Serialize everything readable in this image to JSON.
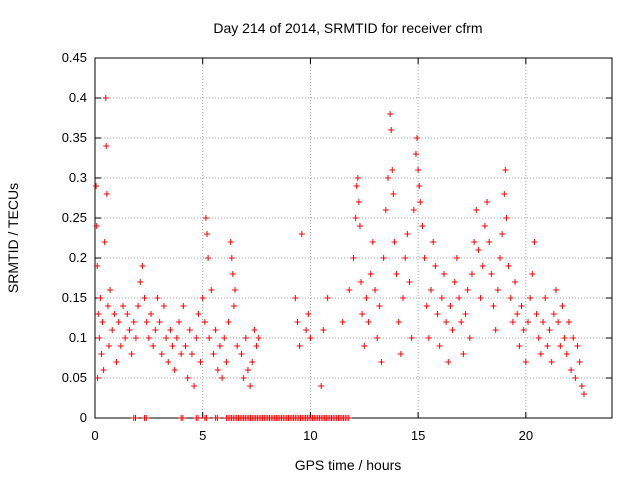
{
  "chart_data": {
    "type": "scatter",
    "title": "Day 214 of 2014, SRMTID for receiver cfrm",
    "xlabel": "GPS time / hours",
    "ylabel": "SRMTID / TECUs",
    "xlim": [
      0,
      24
    ],
    "ylim": [
      0,
      0.45
    ],
    "xticks": [
      0,
      5,
      10,
      15,
      20
    ],
    "xtick_labels": [
      "0",
      "5",
      "10",
      "15",
      "20"
    ],
    "yticks": [
      0,
      0.05,
      0.1,
      0.15,
      0.2,
      0.25,
      0.3,
      0.35,
      0.4,
      0.45
    ],
    "ytick_labels": [
      "0",
      "0.05",
      "0.1",
      "0.15",
      "0.2",
      "0.25",
      "0.3",
      "0.35",
      "0.4",
      "0.45"
    ],
    "grid": true,
    "marker": "plus",
    "color": "#ff0000",
    "series": [
      {
        "name": "SRMTID",
        "points": [
          [
            0.05,
            0.29
          ],
          [
            0.08,
            0.24
          ],
          [
            0.1,
            0.19
          ],
          [
            0.12,
            0.05
          ],
          [
            0.15,
            0.13
          ],
          [
            0.2,
            0.1
          ],
          [
            0.25,
            0.15
          ],
          [
            0.3,
            0.08
          ],
          [
            0.35,
            0.12
          ],
          [
            0.4,
            0.06
          ],
          [
            0.45,
            0.22
          ],
          [
            0.5,
            0.4
          ],
          [
            0.52,
            0.34
          ],
          [
            0.55,
            0.28
          ],
          [
            0.6,
            0.14
          ],
          [
            0.65,
            0.09
          ],
          [
            0.7,
            0.16
          ],
          [
            0.8,
            0.11
          ],
          [
            0.9,
            0.13
          ],
          [
            1.0,
            0.07
          ],
          [
            1.1,
            0.12
          ],
          [
            1.2,
            0.09
          ],
          [
            1.3,
            0.14
          ],
          [
            1.4,
            0.1
          ],
          [
            1.5,
            0.13
          ],
          [
            1.6,
            0.11
          ],
          [
            1.7,
            0.08
          ],
          [
            1.8,
            0.12
          ],
          [
            1.9,
            0.1
          ],
          [
            2.0,
            0.14
          ],
          [
            2.1,
            0.17
          ],
          [
            2.2,
            0.19
          ],
          [
            2.3,
            0.15
          ],
          [
            2.4,
            0.12
          ],
          [
            2.5,
            0.1
          ],
          [
            2.6,
            0.13
          ],
          [
            2.7,
            0.09
          ],
          [
            2.8,
            0.11
          ],
          [
            2.9,
            0.15
          ],
          [
            3.0,
            0.12
          ],
          [
            3.1,
            0.08
          ],
          [
            3.2,
            0.14
          ],
          [
            3.3,
            0.1
          ],
          [
            3.4,
            0.07
          ],
          [
            3.5,
            0.11
          ],
          [
            3.6,
            0.09
          ],
          [
            3.7,
            0.06
          ],
          [
            3.8,
            0.1
          ],
          [
            3.9,
            0.12
          ],
          [
            4.0,
            0.08
          ],
          [
            4.1,
            0.14
          ],
          [
            4.2,
            0.09
          ],
          [
            4.3,
            0.05
          ],
          [
            4.4,
            0.11
          ],
          [
            4.5,
            0.08
          ],
          [
            4.6,
            0.04
          ],
          [
            4.7,
            0.1
          ],
          [
            4.8,
            0.13
          ],
          [
            4.9,
            0.07
          ],
          [
            5.0,
            0.15
          ],
          [
            5.1,
            0.12
          ],
          [
            5.15,
            0.25
          ],
          [
            5.2,
            0.23
          ],
          [
            5.25,
            0.2
          ],
          [
            5.3,
            0.1
          ],
          [
            5.4,
            0.16
          ],
          [
            5.5,
            0.08
          ],
          [
            5.6,
            0.11
          ],
          [
            5.7,
            0.06
          ],
          [
            5.8,
            0.09
          ],
          [
            5.9,
            0.05
          ],
          [
            6.0,
            0.1
          ],
          [
            6.1,
            0.07
          ],
          [
            6.2,
            0.12
          ],
          [
            6.3,
            0.22
          ],
          [
            6.35,
            0.2
          ],
          [
            6.4,
            0.18
          ],
          [
            6.45,
            0.14
          ],
          [
            6.5,
            0.16
          ],
          [
            6.6,
            0.09
          ],
          [
            6.8,
            0.08
          ],
          [
            6.9,
            0.05
          ],
          [
            7.0,
            0.1
          ],
          [
            7.1,
            0.06
          ],
          [
            7.2,
            0.04
          ],
          [
            7.3,
            0.07
          ],
          [
            7.4,
            0.11
          ],
          [
            7.5,
            0.09
          ],
          [
            7.6,
            0.1
          ],
          [
            9.3,
            0.15
          ],
          [
            9.4,
            0.12
          ],
          [
            9.5,
            0.09
          ],
          [
            9.6,
            0.23
          ],
          [
            9.8,
            0.11
          ],
          [
            9.9,
            0.13
          ],
          [
            10.0,
            0.1
          ],
          [
            10.5,
            0.04
          ],
          [
            10.6,
            0.11
          ],
          [
            10.8,
            0.15
          ],
          [
            11.5,
            0.12
          ],
          [
            11.8,
            0.16
          ],
          [
            12.0,
            0.2
          ],
          [
            12.1,
            0.25
          ],
          [
            12.15,
            0.29
          ],
          [
            12.2,
            0.3
          ],
          [
            12.25,
            0.27
          ],
          [
            12.3,
            0.24
          ],
          [
            12.35,
            0.17
          ],
          [
            12.4,
            0.13
          ],
          [
            12.5,
            0.09
          ],
          [
            12.6,
            0.15
          ],
          [
            12.7,
            0.12
          ],
          [
            12.8,
            0.18
          ],
          [
            12.9,
            0.22
          ],
          [
            13.0,
            0.16
          ],
          [
            13.1,
            0.1
          ],
          [
            13.2,
            0.14
          ],
          [
            13.3,
            0.07
          ],
          [
            13.4,
            0.2
          ],
          [
            13.5,
            0.26
          ],
          [
            13.6,
            0.3
          ],
          [
            13.7,
            0.38
          ],
          [
            13.75,
            0.36
          ],
          [
            13.8,
            0.31
          ],
          [
            13.85,
            0.28
          ],
          [
            13.9,
            0.22
          ],
          [
            14.0,
            0.18
          ],
          [
            14.1,
            0.12
          ],
          [
            14.2,
            0.08
          ],
          [
            14.3,
            0.15
          ],
          [
            14.4,
            0.2
          ],
          [
            14.5,
            0.23
          ],
          [
            14.6,
            0.17
          ],
          [
            14.7,
            0.1
          ],
          [
            14.8,
            0.26
          ],
          [
            14.9,
            0.33
          ],
          [
            14.95,
            0.35
          ],
          [
            15.0,
            0.31
          ],
          [
            15.05,
            0.29
          ],
          [
            15.1,
            0.27
          ],
          [
            15.2,
            0.24
          ],
          [
            15.3,
            0.2
          ],
          [
            15.4,
            0.14
          ],
          [
            15.5,
            0.1
          ],
          [
            15.6,
            0.16
          ],
          [
            15.7,
            0.22
          ],
          [
            15.8,
            0.19
          ],
          [
            15.9,
            0.13
          ],
          [
            16.0,
            0.09
          ],
          [
            16.1,
            0.15
          ],
          [
            16.2,
            0.18
          ],
          [
            16.3,
            0.12
          ],
          [
            16.4,
            0.07
          ],
          [
            16.5,
            0.14
          ],
          [
            16.6,
            0.11
          ],
          [
            16.7,
            0.17
          ],
          [
            16.8,
            0.2
          ],
          [
            16.9,
            0.15
          ],
          [
            17.0,
            0.12
          ],
          [
            17.1,
            0.08
          ],
          [
            17.2,
            0.13
          ],
          [
            17.3,
            0.16
          ],
          [
            17.4,
            0.1
          ],
          [
            17.5,
            0.18
          ],
          [
            17.6,
            0.22
          ],
          [
            17.7,
            0.26
          ],
          [
            17.8,
            0.21
          ],
          [
            17.9,
            0.15
          ],
          [
            18.0,
            0.19
          ],
          [
            18.1,
            0.24
          ],
          [
            18.2,
            0.27
          ],
          [
            18.3,
            0.22
          ],
          [
            18.4,
            0.18
          ],
          [
            18.5,
            0.14
          ],
          [
            18.6,
            0.11
          ],
          [
            18.7,
            0.16
          ],
          [
            18.8,
            0.2
          ],
          [
            18.9,
            0.23
          ],
          [
            19.0,
            0.28
          ],
          [
            19.05,
            0.31
          ],
          [
            19.1,
            0.25
          ],
          [
            19.2,
            0.19
          ],
          [
            19.3,
            0.15
          ],
          [
            19.4,
            0.12
          ],
          [
            19.5,
            0.17
          ],
          [
            19.6,
            0.13
          ],
          [
            19.7,
            0.09
          ],
          [
            19.8,
            0.14
          ],
          [
            19.9,
            0.11
          ],
          [
            20.0,
            0.07
          ],
          [
            20.1,
            0.12
          ],
          [
            20.2,
            0.15
          ],
          [
            20.3,
            0.18
          ],
          [
            20.4,
            0.22
          ],
          [
            20.5,
            0.13
          ],
          [
            20.6,
            0.1
          ],
          [
            20.7,
            0.08
          ],
          [
            20.8,
            0.12
          ],
          [
            20.9,
            0.15
          ],
          [
            21.0,
            0.09
          ],
          [
            21.1,
            0.11
          ],
          [
            21.2,
            0.07
          ],
          [
            21.3,
            0.13
          ],
          [
            21.4,
            0.16
          ],
          [
            21.5,
            0.12
          ],
          [
            21.6,
            0.09
          ],
          [
            21.7,
            0.14
          ],
          [
            21.8,
            0.1
          ],
          [
            21.9,
            0.08
          ],
          [
            22.0,
            0.12
          ],
          [
            22.1,
            0.06
          ],
          [
            22.2,
            0.1
          ],
          [
            22.3,
            0.05
          ],
          [
            22.4,
            0.09
          ],
          [
            22.5,
            0.07
          ],
          [
            22.6,
            0.04
          ],
          [
            22.7,
            0.03
          ]
        ]
      }
    ],
    "zero_band": {
      "segments": [
        [
          1.8,
          1.9
        ],
        [
          2.3,
          2.4
        ],
        [
          4.0,
          4.1
        ],
        [
          4.7,
          4.8
        ],
        [
          5.1,
          5.2
        ],
        [
          5.6,
          5.7
        ],
        [
          6.1,
          11.8
        ]
      ],
      "value": 0
    }
  }
}
